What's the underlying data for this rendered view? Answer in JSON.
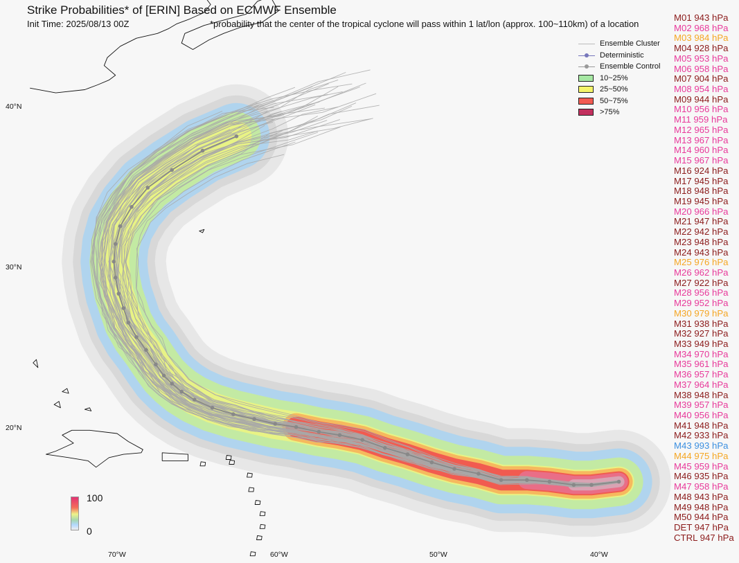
{
  "header": {
    "title": "Strike Probabilities* of [ERIN] Based on ECMWF Ensemble",
    "init_time": "Init Time: 2025/08/13 00Z",
    "note": "*probability that the center of the tropical cyclone will pass within 1 lat/lon (approx. 100~110km) of a location"
  },
  "legend": {
    "items": [
      {
        "label": "Ensemble Cluster",
        "kind": "line",
        "color": "#bbbbbb"
      },
      {
        "label": "Deterministic",
        "kind": "marker-line",
        "color": "#7777bb"
      },
      {
        "label": "Ensemble Control",
        "kind": "marker-line",
        "color": "#999999"
      },
      {
        "label": "10~25%",
        "kind": "box",
        "color": "#a6e8a3"
      },
      {
        "label": "25~50%",
        "kind": "box",
        "color": "#f5f56a"
      },
      {
        "label": "50~75%",
        "kind": "box",
        "color": "#f25b52"
      },
      {
        "label": ">75%",
        "kind": "box",
        "color": "#c2305e"
      }
    ]
  },
  "members": [
    {
      "label": "M01 943 hPa",
      "color": "#8b1a1a"
    },
    {
      "label": "M02 968 hPa",
      "color": "#e8399a"
    },
    {
      "label": "M03 984 hPa",
      "color": "#f5a623"
    },
    {
      "label": "M04 928 hPa",
      "color": "#8b1a1a"
    },
    {
      "label": "M05 953 hPa",
      "color": "#e8399a"
    },
    {
      "label": "M06 958 hPa",
      "color": "#e8399a"
    },
    {
      "label": "M07 904 hPa",
      "color": "#8b1a1a"
    },
    {
      "label": "M08 954 hPa",
      "color": "#e8399a"
    },
    {
      "label": "M09 944 hPa",
      "color": "#8b1a1a"
    },
    {
      "label": "M10 956 hPa",
      "color": "#e8399a"
    },
    {
      "label": "M11 959 hPa",
      "color": "#e8399a"
    },
    {
      "label": "M12 965 hPa",
      "color": "#e8399a"
    },
    {
      "label": "M13 967 hPa",
      "color": "#e8399a"
    },
    {
      "label": "M14 960 hPa",
      "color": "#e8399a"
    },
    {
      "label": "M15 967 hPa",
      "color": "#e8399a"
    },
    {
      "label": "M16 924 hPa",
      "color": "#8b1a1a"
    },
    {
      "label": "M17 945 hPa",
      "color": "#8b1a1a"
    },
    {
      "label": "M18 948 hPa",
      "color": "#8b1a1a"
    },
    {
      "label": "M19 945 hPa",
      "color": "#8b1a1a"
    },
    {
      "label": "M20 966 hPa",
      "color": "#e8399a"
    },
    {
      "label": "M21 947 hPa",
      "color": "#8b1a1a"
    },
    {
      "label": "M22 942 hPa",
      "color": "#8b1a1a"
    },
    {
      "label": "M23 948 hPa",
      "color": "#8b1a1a"
    },
    {
      "label": "M24 943 hPa",
      "color": "#8b1a1a"
    },
    {
      "label": "M25 976 hPa",
      "color": "#f5a623"
    },
    {
      "label": "M26 962 hPa",
      "color": "#e8399a"
    },
    {
      "label": "M27 922 hPa",
      "color": "#8b1a1a"
    },
    {
      "label": "M28 956 hPa",
      "color": "#e8399a"
    },
    {
      "label": "M29 952 hPa",
      "color": "#e8399a"
    },
    {
      "label": "M30 979 hPa",
      "color": "#f5a623"
    },
    {
      "label": "M31 938 hPa",
      "color": "#8b1a1a"
    },
    {
      "label": "M32 927 hPa",
      "color": "#8b1a1a"
    },
    {
      "label": "M33 949 hPa",
      "color": "#8b1a1a"
    },
    {
      "label": "M34 970 hPa",
      "color": "#e8399a"
    },
    {
      "label": "M35 961 hPa",
      "color": "#e8399a"
    },
    {
      "label": "M36 957 hPa",
      "color": "#e8399a"
    },
    {
      "label": "M37 964 hPa",
      "color": "#e8399a"
    },
    {
      "label": "M38 948 hPa",
      "color": "#8b1a1a"
    },
    {
      "label": "M39 957 hPa",
      "color": "#e8399a"
    },
    {
      "label": "M40 956 hPa",
      "color": "#e8399a"
    },
    {
      "label": "M41 948 hPa",
      "color": "#8b1a1a"
    },
    {
      "label": "M42 933 hPa",
      "color": "#8b1a1a"
    },
    {
      "label": "M43 993 hPa",
      "color": "#3b8fe0"
    },
    {
      "label": "M44 975 hPa",
      "color": "#f5a623"
    },
    {
      "label": "M45 959 hPa",
      "color": "#e8399a"
    },
    {
      "label": "M46 935 hPa",
      "color": "#8b1a1a"
    },
    {
      "label": "M47 958 hPa",
      "color": "#e8399a"
    },
    {
      "label": "M48 943 hPa",
      "color": "#8b1a1a"
    },
    {
      "label": "M49 948 hPa",
      "color": "#8b1a1a"
    },
    {
      "label": "M50 944 hPa",
      "color": "#8b1a1a"
    },
    {
      "label": "DET 947 hPa",
      "color": "#8b1a1a"
    },
    {
      "label": "CTRL 947 hPa",
      "color": "#8b1a1a"
    }
  ],
  "axes": {
    "lon_ticks": [
      "70°W",
      "60°W",
      "50°W",
      "40°W"
    ],
    "lat_ticks": [
      "40°N",
      "30°N",
      "20°N"
    ]
  },
  "colorbar": {
    "max_label": "100",
    "min_label": "0"
  },
  "track": {
    "points": [
      [
        -38.9,
        16.7
      ],
      [
        -40.6,
        16.5
      ],
      [
        -41.7,
        16.5
      ],
      [
        -43.2,
        16.7
      ],
      [
        -44.6,
        16.8
      ],
      [
        -46.2,
        16.8
      ],
      [
        -47.6,
        17.2
      ],
      [
        -49.1,
        17.5
      ],
      [
        -50.5,
        17.9
      ],
      [
        -52.0,
        18.4
      ],
      [
        -53.4,
        18.8
      ],
      [
        -54.8,
        19.3
      ],
      [
        -56.2,
        19.6
      ],
      [
        -57.5,
        19.8
      ],
      [
        -58.9,
        20.1
      ],
      [
        -60.2,
        20.3
      ],
      [
        -61.5,
        20.6
      ],
      [
        -62.8,
        20.9
      ],
      [
        -64.1,
        21.3
      ],
      [
        -65.2,
        21.8
      ],
      [
        -66.0,
        22.3
      ],
      [
        -66.6,
        22.8
      ],
      [
        -67.1,
        23.3
      ],
      [
        -67.6,
        24.0
      ],
      [
        -68.2,
        24.9
      ],
      [
        -68.8,
        25.7
      ],
      [
        -69.3,
        26.6
      ],
      [
        -69.6,
        27.5
      ],
      [
        -69.9,
        28.4
      ],
      [
        -70.1,
        29.4
      ],
      [
        -70.2,
        30.4
      ],
      [
        -70.1,
        31.5
      ],
      [
        -69.8,
        32.6
      ],
      [
        -69.1,
        33.8
      ],
      [
        -68.1,
        35.0
      ],
      [
        -66.6,
        36.1
      ],
      [
        -64.7,
        37.3
      ],
      [
        -62.6,
        38.2
      ]
    ],
    "color": "#888888"
  }
}
